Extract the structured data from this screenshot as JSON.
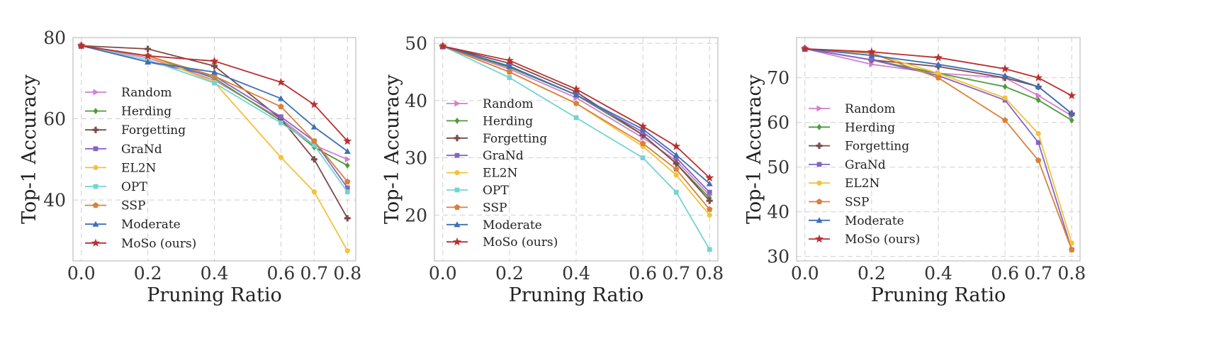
{
  "chart_data": [
    {
      "type": "line",
      "xlabel": "Pruning Ratio",
      "ylabel": "Top-1 Accuracy",
      "x": [
        0.0,
        0.2,
        0.4,
        0.6,
        0.7,
        0.8
      ],
      "xticks": [
        "0.0",
        "0.2",
        "0.4",
        "0.6",
        "0.7",
        "0.8"
      ],
      "ylim": [
        25,
        80
      ],
      "yticks": [
        40,
        60,
        80
      ],
      "grid": true,
      "legend_position": "center-left",
      "series": [
        {
          "name": "Random",
          "color": "#d17fd0",
          "marker": "triangle-right",
          "values": [
            78,
            75,
            69.5,
            60,
            53.5,
            50
          ]
        },
        {
          "name": "Herding",
          "color": "#4e9a3a",
          "marker": "diamond",
          "values": [
            78,
            75.5,
            70,
            59.5,
            53,
            48.5
          ]
        },
        {
          "name": "Forgetting",
          "color": "#7b4a4a",
          "marker": "plus",
          "values": [
            78,
            77.2,
            73,
            60,
            50,
            35.5
          ]
        },
        {
          "name": "GraNd",
          "color": "#8464c4",
          "marker": "square",
          "values": [
            78,
            74,
            70.5,
            60.5,
            54.5,
            43
          ]
        },
        {
          "name": "EL2N",
          "color": "#f2c23a",
          "marker": "circle",
          "values": [
            78,
            75.5,
            69,
            50.5,
            42,
            27.5
          ]
        },
        {
          "name": "OPT",
          "color": "#72d4d2",
          "marker": "square",
          "values": [
            78,
            74.5,
            68.8,
            59,
            53.5,
            42
          ]
        },
        {
          "name": "SSP",
          "color": "#d9813a",
          "marker": "pentagon",
          "values": [
            78,
            75.5,
            70.5,
            63,
            54.5,
            44.5
          ]
        },
        {
          "name": "Moderate",
          "color": "#3f6fb5",
          "marker": "triangle-up",
          "values": [
            78,
            74,
            71.5,
            65,
            58,
            52
          ]
        },
        {
          "name": "MoSo (ours)",
          "color": "#b9302f",
          "marker": "star",
          "values": [
            78,
            75.5,
            74.2,
            69,
            63.5,
            54.5
          ]
        }
      ]
    },
    {
      "type": "line",
      "xlabel": "Pruning Ratio",
      "ylabel": "Top-1 Accuracy",
      "x": [
        0.0,
        0.2,
        0.4,
        0.6,
        0.7,
        0.8
      ],
      "xticks": [
        "0.0",
        "0.2",
        "0.4",
        "0.6",
        "0.7",
        "0.8"
      ],
      "ylim": [
        12,
        51
      ],
      "yticks": [
        20,
        30,
        40,
        50
      ],
      "grid": true,
      "legend_position": "center-left",
      "series": [
        {
          "name": "Random",
          "color": "#d17fd0",
          "marker": "triangle-right",
          "values": [
            49.5,
            45.5,
            40.5,
            33.5,
            29.5,
            23.5
          ]
        },
        {
          "name": "Herding",
          "color": "#4e9a3a",
          "marker": "diamond",
          "values": [
            49.5,
            45.8,
            41,
            34,
            29,
            23
          ]
        },
        {
          "name": "Forgetting",
          "color": "#7b4a4a",
          "marker": "plus",
          "values": [
            49.5,
            46.5,
            41.5,
            34,
            29,
            22.5
          ]
        },
        {
          "name": "GraNd",
          "color": "#8464c4",
          "marker": "square",
          "values": [
            49.5,
            46,
            41,
            34.5,
            30,
            24
          ]
        },
        {
          "name": "EL2N",
          "color": "#f2c23a",
          "marker": "circle",
          "values": [
            49.5,
            45,
            39.5,
            32,
            27,
            20
          ]
        },
        {
          "name": "OPT",
          "color": "#72d4d2",
          "marker": "square",
          "values": [
            49.5,
            44,
            37,
            30,
            24,
            14
          ]
        },
        {
          "name": "SSP",
          "color": "#d9813a",
          "marker": "pentagon",
          "values": [
            49.5,
            45,
            39.5,
            32.5,
            28,
            21
          ]
        },
        {
          "name": "Moderate",
          "color": "#3f6fb5",
          "marker": "triangle-up",
          "values": [
            49.5,
            46,
            41,
            35,
            30.5,
            25.5
          ]
        },
        {
          "name": "MoSo (ours)",
          "color": "#b9302f",
          "marker": "star",
          "values": [
            49.5,
            47,
            42,
            35.5,
            32,
            26.5
          ]
        }
      ]
    },
    {
      "type": "line",
      "xlabel": "Pruning Ratio",
      "ylabel": "Top-1 Accuracy",
      "x": [
        0.0,
        0.2,
        0.4,
        0.6,
        0.7,
        0.8
      ],
      "xticks": [
        "0.0",
        "0.2",
        "0.4",
        "0.6",
        "0.7",
        "0.8"
      ],
      "ylim": [
        29,
        79
      ],
      "yticks": [
        30,
        40,
        50,
        60,
        70
      ],
      "grid": true,
      "legend_position": "center-left",
      "series": [
        {
          "name": "Random",
          "color": "#d17fd0",
          "marker": "triangle-right",
          "values": [
            76.5,
            73,
            71,
            70,
            66,
            61.5
          ]
        },
        {
          "name": "Herding",
          "color": "#4e9a3a",
          "marker": "diamond",
          "values": [
            76.5,
            74,
            71,
            68,
            65,
            60.5
          ]
        },
        {
          "name": "Forgetting",
          "color": "#7b4a4a",
          "marker": "plus",
          "values": [
            76.5,
            74,
            72.5,
            70,
            68,
            62
          ]
        },
        {
          "name": "GraNd",
          "color": "#8464c4",
          "marker": "square",
          "values": [
            76.5,
            74,
            70.5,
            65,
            55.5,
            31.5
          ]
        },
        {
          "name": "EL2N",
          "color": "#f2c23a",
          "marker": "circle",
          "values": [
            76.5,
            75.5,
            71,
            65.5,
            57.5,
            33
          ]
        },
        {
          "name": "SSP",
          "color": "#d9813a",
          "marker": "pentagon",
          "values": [
            76.5,
            75.5,
            70,
            60.5,
            51.5,
            31.5
          ]
        },
        {
          "name": "Moderate",
          "color": "#3f6fb5",
          "marker": "triangle-up",
          "values": [
            76.5,
            75,
            73,
            70.5,
            68,
            62
          ]
        },
        {
          "name": "MoSo (ours)",
          "color": "#b9302f",
          "marker": "star",
          "values": [
            76.5,
            75.8,
            74.5,
            72,
            70,
            66
          ]
        }
      ]
    }
  ]
}
